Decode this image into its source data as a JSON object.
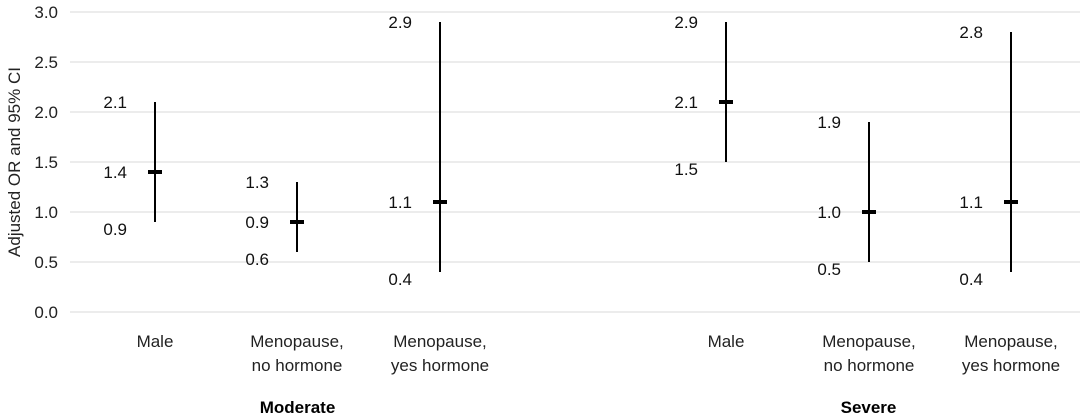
{
  "chart_data": {
    "type": "errorbar",
    "ylabel": "Adjusted OR and 95% CI",
    "ylim": [
      0,
      3
    ],
    "yticks": [
      "0.0",
      "0.5",
      "1.0",
      "1.5",
      "2.0",
      "2.5",
      "3.0"
    ],
    "grid": true,
    "groups": [
      {
        "name": "Moderate",
        "categories": [
          {
            "label": [
              "Male"
            ],
            "or": 1.4,
            "lo": 0.9,
            "hi": 2.1,
            "or_label": "1.4",
            "lo_label": "0.9",
            "hi_label": "2.1"
          },
          {
            "label": [
              "Menopause,",
              "no hormone"
            ],
            "or": 0.9,
            "lo": 0.6,
            "hi": 1.3,
            "or_label": "0.9",
            "lo_label": "0.6",
            "hi_label": "1.3"
          },
          {
            "label": [
              "Menopause,",
              "yes hormone"
            ],
            "or": 1.1,
            "lo": 0.4,
            "hi": 2.9,
            "or_label": "1.1",
            "lo_label": "0.4",
            "hi_label": "2.9"
          }
        ]
      },
      {
        "name": "Severe",
        "categories": [
          {
            "label": [
              "Male"
            ],
            "or": 2.1,
            "lo": 1.5,
            "hi": 2.9,
            "or_label": "2.1",
            "lo_label": "1.5",
            "hi_label": "2.9"
          },
          {
            "label": [
              "Menopause,",
              "no hormone"
            ],
            "or": 1.0,
            "lo": 0.5,
            "hi": 1.9,
            "or_label": "1.0",
            "lo_label": "0.5",
            "hi_label": "1.9"
          },
          {
            "label": [
              "Menopause,",
              "yes hormone"
            ],
            "or": 1.1,
            "lo": 0.4,
            "hi": 2.8,
            "or_label": "1.1",
            "lo_label": "0.4",
            "hi_label": "2.8"
          }
        ]
      }
    ]
  }
}
